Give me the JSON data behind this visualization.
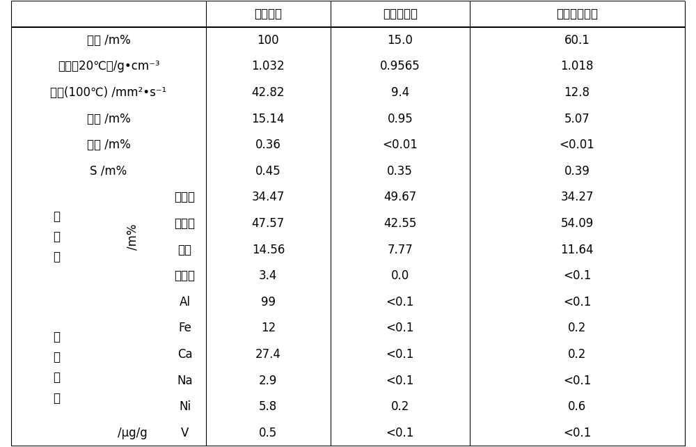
{
  "header": [
    "油浆原料",
    "萃取轻组分",
    "萃取中间组分"
  ],
  "simple_rows": [
    {
      "label": "收率 /m%",
      "col1": "100",
      "col2": "15.0",
      "col3": "60.1"
    },
    {
      "label": "密度（20℃）/g•cm⁻³",
      "col1": "1.032",
      "col2": "0.9565",
      "col3": "1.018"
    },
    {
      "label": "粘度(100℃) /mm²•s⁻¹",
      "col1": "42.82",
      "col2": "9.4",
      "col3": "12.8"
    },
    {
      "label": "残炭 /m%",
      "col1": "15.14",
      "col2": "0.95",
      "col3": "5.07"
    },
    {
      "label": "灰分 /m%",
      "col1": "0.36",
      "col2": "<0.01",
      "col3": "<0.01"
    },
    {
      "label": "S /m%",
      "col1": "0.45",
      "col2": "0.35",
      "col3": "0.39"
    }
  ],
  "group1_label": "四\n组\n分",
  "group1_unit": "/m%",
  "group1_rows": [
    {
      "sub": "饱和分",
      "col1": "34.47",
      "col2": "49.67",
      "col3": "34.27"
    },
    {
      "sub": "芳香分",
      "col1": "47.57",
      "col2": "42.55",
      "col3": "54.09"
    },
    {
      "sub": "胶质",
      "col1": "14.56",
      "col2": "7.77",
      "col3": "11.64"
    },
    {
      "sub": "沥青质",
      "col1": "3.4",
      "col2": "0.0",
      "col3": "<0.1"
    }
  ],
  "group2_label": "金\n属\n含\n量",
  "group2_unit": "/μg/g",
  "group2_rows": [
    {
      "sub": "Al",
      "col1": "99",
      "col2": "<0.1",
      "col3": "<0.1"
    },
    {
      "sub": "Fe",
      "col1": "12",
      "col2": "<0.1",
      "col3": "0.2"
    },
    {
      "sub": "Ca",
      "col1": "27.4",
      "col2": "<0.1",
      "col3": "0.2"
    },
    {
      "sub": "Na",
      "col1": "2.9",
      "col2": "<0.1",
      "col3": "<0.1"
    },
    {
      "sub": "Ni",
      "col1": "5.8",
      "col2": "0.2",
      "col3": "0.6"
    },
    {
      "sub": "V",
      "col1": "0.5",
      "col2": "<0.1",
      "col3": "<0.1"
    }
  ],
  "bg_color": "#ffffff",
  "text_color": "#000000",
  "line_color": "#000000",
  "font_size": 12,
  "header_font_size": 12
}
